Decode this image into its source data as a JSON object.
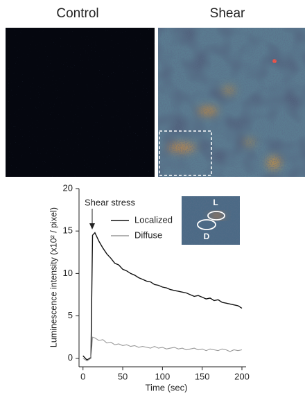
{
  "panels": [
    {
      "label": "Control"
    },
    {
      "label": "Shear"
    }
  ],
  "chart_data": {
    "type": "line",
    "y_label": "Luminescence intensity (x10² / pixel)",
    "x_label": "Time (sec)",
    "annotations": [
      "Shear stress"
    ],
    "inset_labels": [
      "L",
      "D"
    ],
    "x": [
      0,
      5,
      10,
      12,
      15,
      20,
      25,
      30,
      35,
      40,
      45,
      50,
      55,
      60,
      65,
      70,
      75,
      80,
      85,
      90,
      95,
      100,
      105,
      110,
      115,
      120,
      125,
      130,
      135,
      140,
      145,
      150,
      155,
      160,
      165,
      170,
      175,
      180,
      185,
      190,
      195,
      200
    ],
    "series": [
      {
        "name": "Localized",
        "color": "#111111",
        "values": [
          0.3,
          -0.2,
          0.1,
          14.5,
          14.8,
          13.8,
          13,
          12.3,
          11.8,
          11.2,
          11,
          10.5,
          10.3,
          10,
          9.8,
          9.5,
          9.3,
          9.1,
          9,
          8.7,
          8.6,
          8.4,
          8.3,
          8.1,
          8,
          7.9,
          7.8,
          7.7,
          7.5,
          7.3,
          7.4,
          7.2,
          7,
          7.1,
          6.8,
          6.9,
          6.6,
          6.5,
          6.4,
          6.3,
          6.2,
          5.9
        ]
      },
      {
        "name": "Diffuse",
        "color": "#999999",
        "values": [
          0,
          -0.3,
          0,
          2.5,
          2.4,
          2.1,
          2.2,
          1.8,
          1.9,
          1.6,
          1.7,
          1.5,
          1.6,
          1.4,
          1.5,
          1.3,
          1.4,
          1.3,
          1.2,
          1.4,
          1.2,
          1.3,
          1.1,
          1.2,
          1.3,
          1.1,
          1.2,
          1,
          1.1,
          1.2,
          1,
          1.1,
          0.9,
          1.1,
          1,
          0.9,
          1.1,
          1,
          0.8,
          1,
          0.9,
          1
        ]
      }
    ],
    "xlim": [
      -5,
      200
    ],
    "ylim": [
      -1,
      20
    ],
    "xticks": [
      0,
      50,
      100,
      150,
      200
    ],
    "yticks": [
      0,
      5,
      10,
      15,
      20
    ]
  }
}
